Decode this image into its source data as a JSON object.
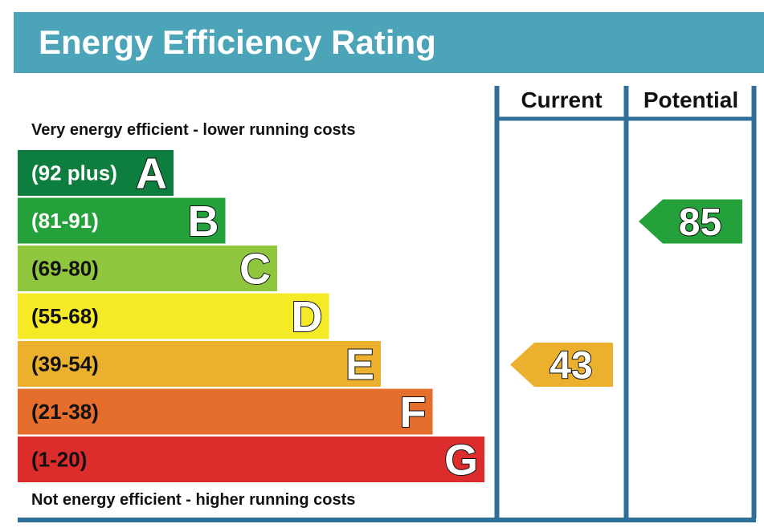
{
  "chart_data": {
    "type": "bar",
    "title": "Energy Efficiency Rating",
    "columns": {
      "current_label": "Current",
      "potential_label": "Potential"
    },
    "top_note": "Very energy efficient - lower running costs",
    "bottom_note": "Not energy efficient - higher running costs",
    "bands": [
      {
        "letter": "A",
        "range": "(92 plus)",
        "min": 92,
        "max": null,
        "color": "#0e7e3e"
      },
      {
        "letter": "B",
        "range": "(81-91)",
        "min": 81,
        "max": 91,
        "color": "#24a13b"
      },
      {
        "letter": "C",
        "range": "(69-80)",
        "min": 69,
        "max": 80,
        "color": "#8fc63e"
      },
      {
        "letter": "D",
        "range": "(55-68)",
        "min": 55,
        "max": 68,
        "color": "#f4eb26"
      },
      {
        "letter": "E",
        "range": "(39-54)",
        "min": 39,
        "max": 54,
        "color": "#ecb02f"
      },
      {
        "letter": "F",
        "range": "(21-38)",
        "min": 21,
        "max": 38,
        "color": "#e56e2d"
      },
      {
        "letter": "G",
        "range": "(1-20)",
        "min": 1,
        "max": 20,
        "color": "#dc2d2c"
      }
    ],
    "current": {
      "value": 43,
      "band": "E",
      "color": "#ecb02f"
    },
    "potential": {
      "value": 85,
      "band": "B",
      "color": "#24a13b"
    },
    "header_color": "#4ba4b8",
    "frame_color": "#2f6f99"
  }
}
